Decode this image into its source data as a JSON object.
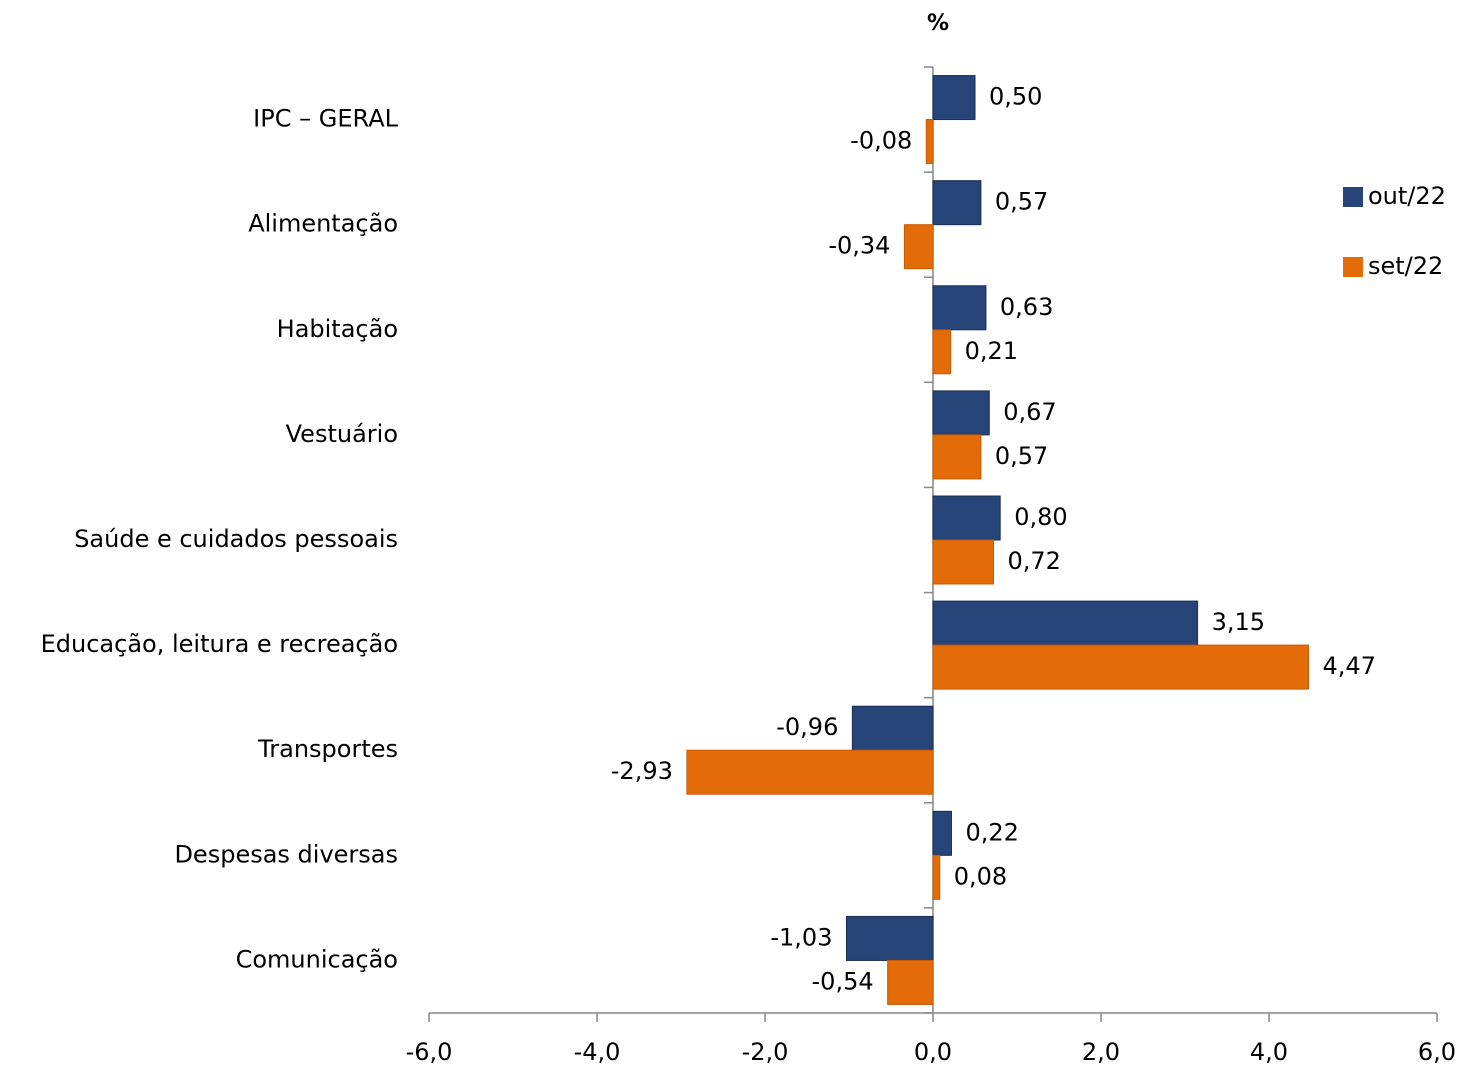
{
  "chart_data": {
    "type": "hbar",
    "title": "%",
    "categories": [
      "IPC – GERAL",
      "Alimentação",
      "Habitação",
      "Vestuário",
      "Saúde e cuidados pessoais",
      "Educação, leitura e recreação",
      "Transportes",
      "Despesas diversas",
      "Comunicação"
    ],
    "series": [
      {
        "name": "out/22",
        "color": "#264478",
        "values": [
          0.5,
          0.57,
          0.63,
          0.67,
          0.8,
          3.15,
          -0.96,
          0.22,
          -1.03
        ],
        "value_labels": [
          "0,50",
          "0,57",
          "0,63",
          "0,67",
          "0,80",
          "3,15",
          "-0,96",
          "0,22",
          "-1,03"
        ]
      },
      {
        "name": "set/22",
        "color": "#e36c09",
        "values": [
          -0.08,
          -0.34,
          0.21,
          0.57,
          0.72,
          4.47,
          -2.93,
          0.08,
          -0.54
        ],
        "value_labels": [
          "-0,08",
          "-0,34",
          "0,21",
          "0,57",
          "0,72",
          "4,47",
          "-2,93",
          "0,08",
          "-0,54"
        ]
      }
    ],
    "xlim": [
      -6,
      6
    ],
    "xticks": [
      {
        "value": -6,
        "label": "-6,0"
      },
      {
        "value": -4,
        "label": "-4,0"
      },
      {
        "value": -2,
        "label": "-2,0"
      },
      {
        "value": 0,
        "label": "0,0"
      },
      {
        "value": 2,
        "label": "2,0"
      },
      {
        "value": 4,
        "label": "4,0"
      },
      {
        "value": 6,
        "label": "6,0"
      }
    ],
    "grid": false,
    "legend": "right"
  }
}
